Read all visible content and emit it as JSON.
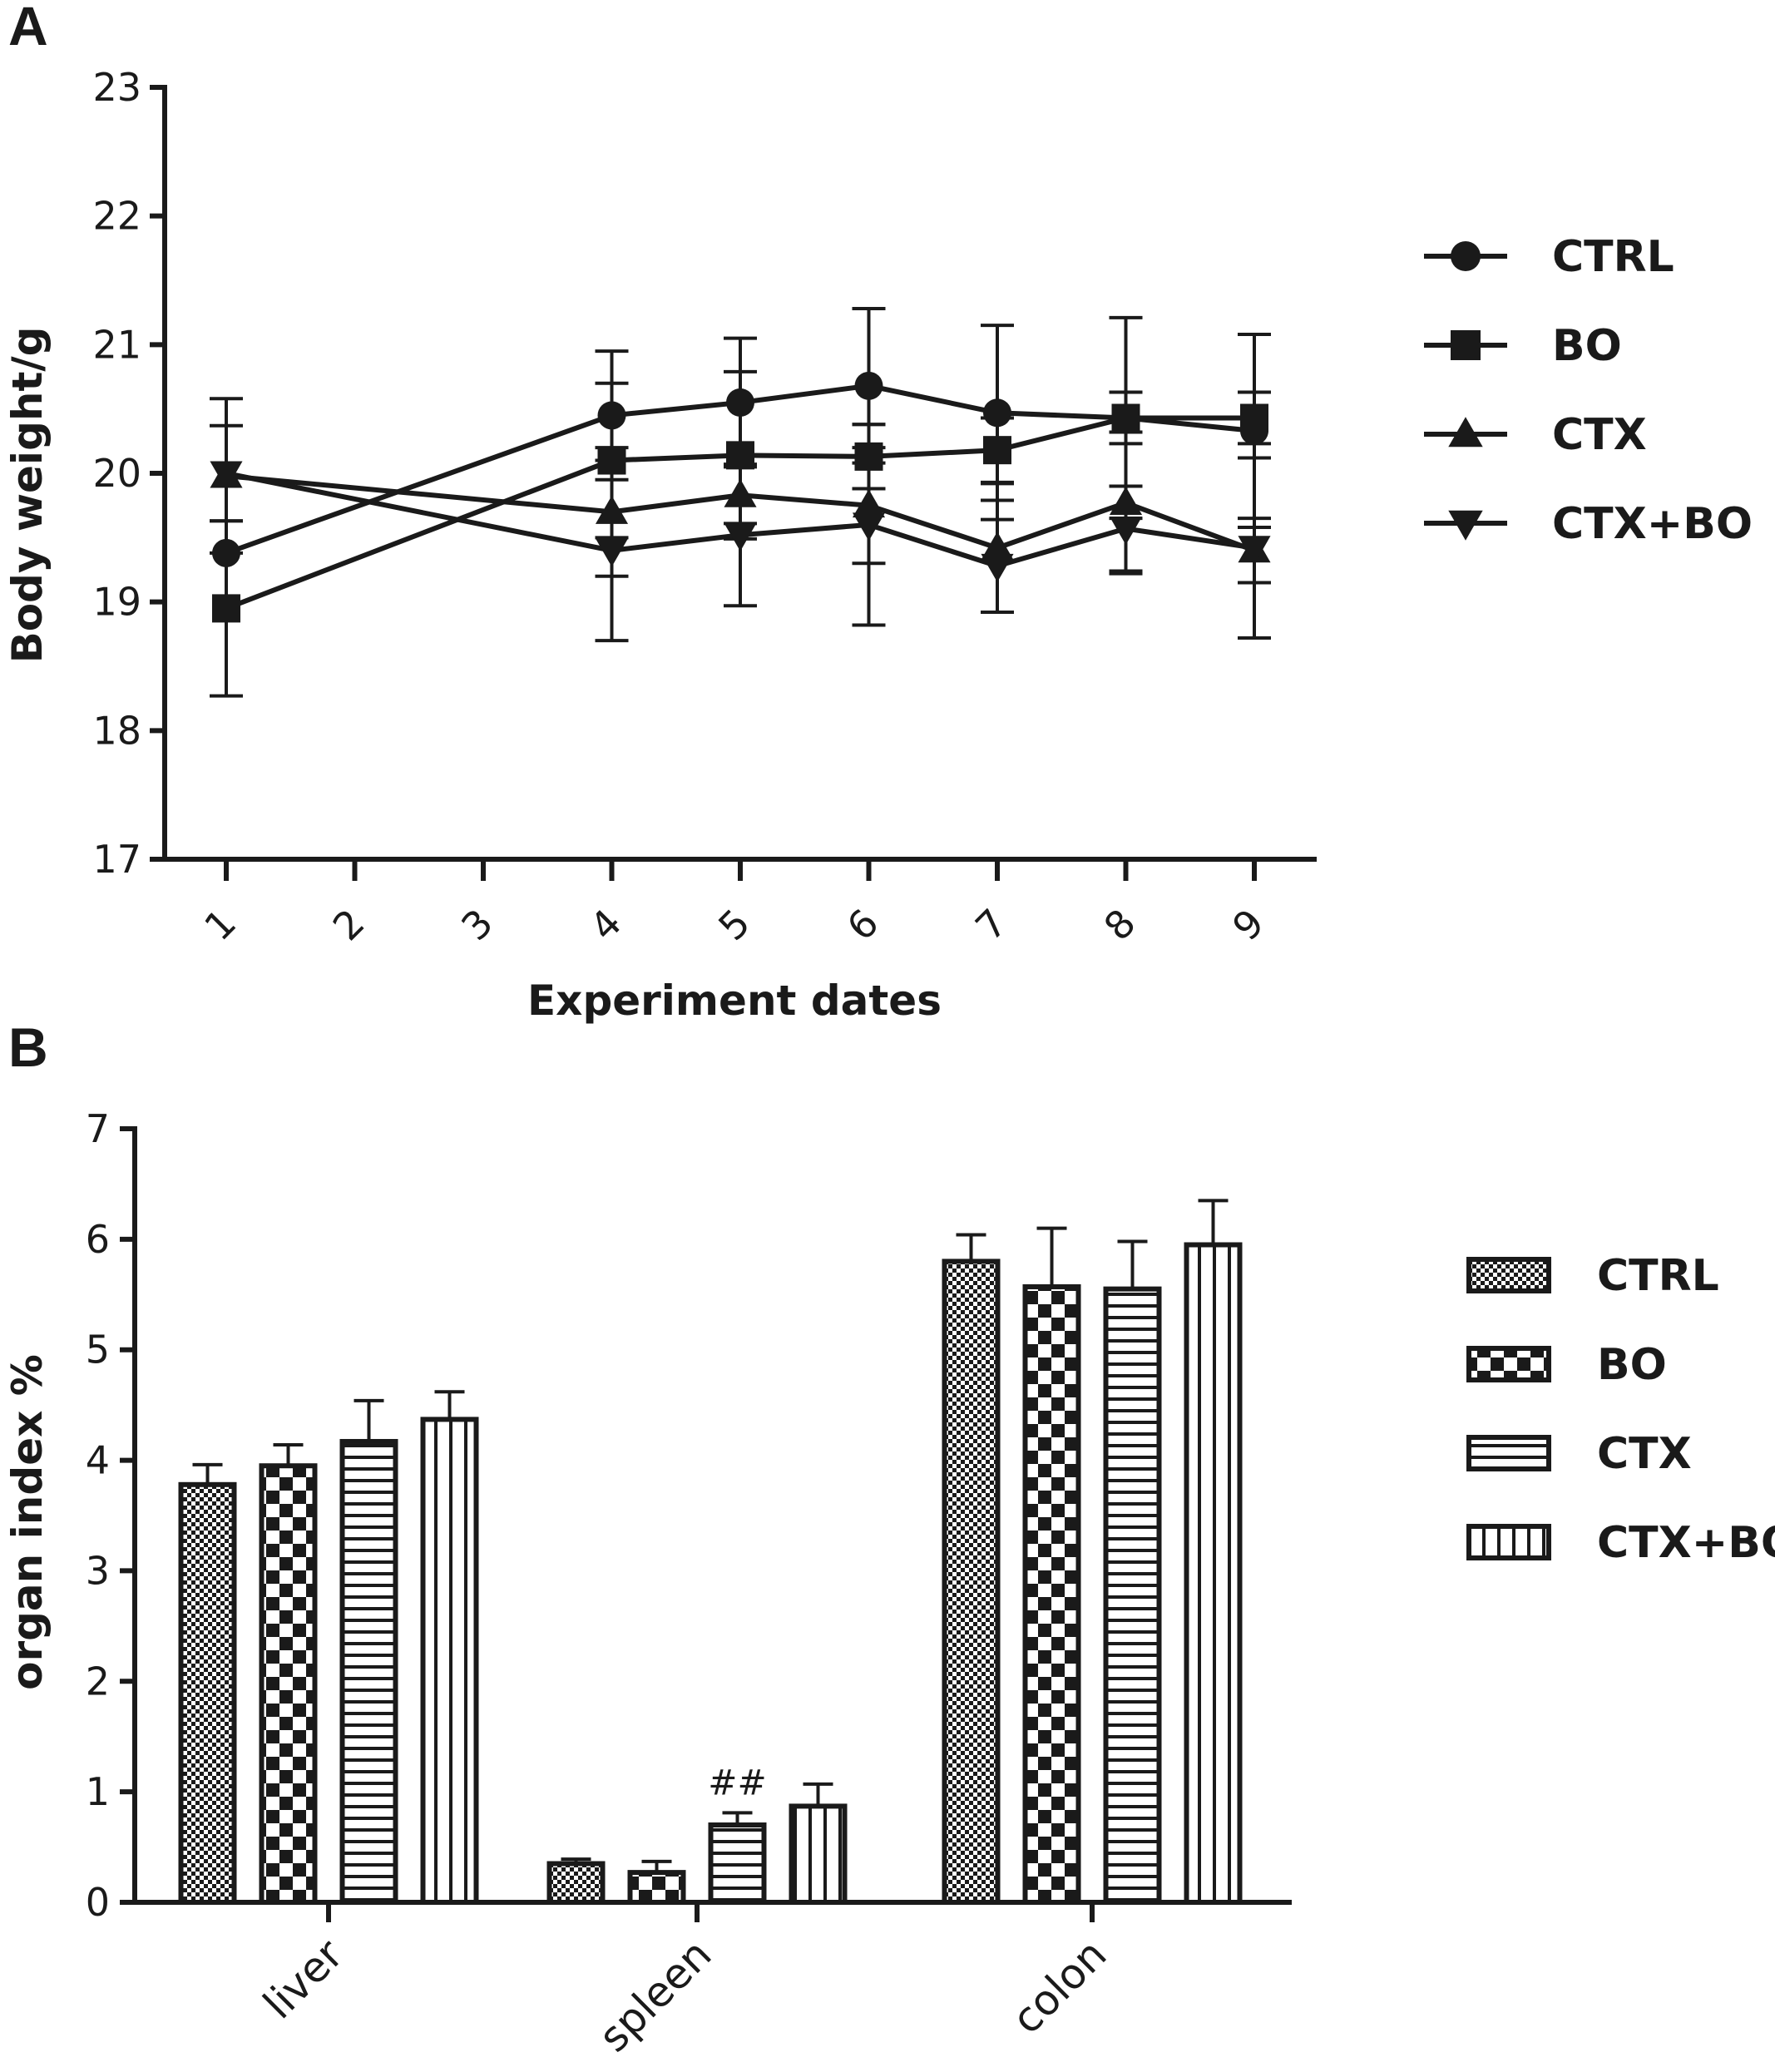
{
  "panel_a_label": "A",
  "panel_b_label": "B",
  "chart_data": [
    {
      "type": "line",
      "title": "",
      "xlabel": "Experiment dates",
      "ylabel": "Body weight/g",
      "ylim": [
        17,
        23
      ],
      "yticks": [
        17,
        18,
        19,
        20,
        21,
        22,
        23
      ],
      "x": [
        1,
        2,
        3,
        4,
        5,
        6,
        7,
        8,
        9
      ],
      "x_tick_labels": [
        "1",
        "2",
        "3",
        "4",
        "5",
        "6",
        "7",
        "8",
        "9"
      ],
      "grid": false,
      "legend_position": "right",
      "series": [
        {
          "name": "CTRL",
          "marker": "circle",
          "x": [
            1,
            4,
            5,
            6,
            7,
            8,
            9
          ],
          "values": [
            19.38,
            20.45,
            20.55,
            20.68,
            20.47,
            20.43,
            20.33
          ],
          "errors": [
            0.0,
            0.5,
            0.5,
            0.6,
            0.68,
            0.78,
            0.75
          ]
        },
        {
          "name": "BO",
          "marker": "square",
          "x": [
            1,
            4,
            5,
            6,
            7,
            8,
            9
          ],
          "values": [
            18.95,
            20.1,
            20.14,
            20.13,
            20.18,
            20.43,
            20.43
          ],
          "errors": [
            0.68,
            0.6,
            0.65,
            0.25,
            0.25,
            0.2,
            0.2
          ]
        },
        {
          "name": "CTX",
          "marker": "triangle-up",
          "x": [
            1,
            4,
            5,
            6,
            7,
            8,
            9
          ],
          "values": [
            19.98,
            19.7,
            19.83,
            19.75,
            19.42,
            19.77,
            19.4
          ],
          "errors": [
            0.6,
            0.5,
            0.22,
            0.45,
            0.5,
            0.55,
            0.25
          ]
        },
        {
          "name": "CTX+BO",
          "marker": "triangle-down",
          "x": [
            1,
            4,
            5,
            6,
            7,
            8,
            9
          ],
          "values": [
            20.0,
            19.4,
            19.52,
            19.6,
            19.28,
            19.57,
            19.42
          ],
          "errors": [
            0.37,
            0.7,
            0.55,
            0.78,
            0.36,
            0.33,
            0.7
          ]
        }
      ]
    },
    {
      "type": "bar",
      "title": "",
      "xlabel": "",
      "ylabel": "organ index %",
      "ylim": [
        0,
        7
      ],
      "yticks": [
        0,
        1,
        2,
        3,
        4,
        5,
        6,
        7
      ],
      "categories": [
        "liver",
        "spleen",
        "colon"
      ],
      "grid": false,
      "legend_position": "right",
      "series": [
        {
          "name": "CTRL",
          "pattern": "fine-checker",
          "values": [
            3.78,
            0.35,
            5.8
          ],
          "errors": [
            0.18,
            0.04,
            0.24
          ]
        },
        {
          "name": "BO",
          "pattern": "coarse-checker",
          "values": [
            3.95,
            0.27,
            5.57
          ],
          "errors": [
            0.19,
            0.1,
            0.53
          ]
        },
        {
          "name": "CTX",
          "pattern": "horizontal-stripes",
          "values": [
            4.17,
            0.7,
            5.55
          ],
          "errors": [
            0.37,
            0.11,
            0.43
          ]
        },
        {
          "name": "CTX+BO",
          "pattern": "vertical-stripes",
          "values": [
            4.37,
            0.87,
            5.95
          ],
          "errors": [
            0.25,
            0.2,
            0.4
          ]
        }
      ],
      "annotations": [
        {
          "category": "spleen",
          "series": "CTX",
          "text": "##"
        }
      ]
    }
  ]
}
